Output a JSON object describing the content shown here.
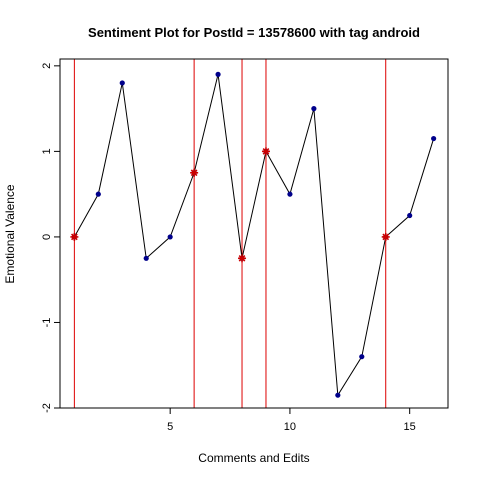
{
  "chart_data": {
    "type": "line",
    "title": "Sentiment Plot for PostId =  13578600  with tag  android",
    "xlabel": "Comments and Edits",
    "ylabel": "Emotional Valence",
    "xlim": [
      0.4,
      16.6
    ],
    "ylim": [
      -2.0,
      2.08
    ],
    "xticks": [
      5,
      10,
      15
    ],
    "yticks": [
      -2,
      -1,
      0,
      1,
      2
    ],
    "grid": false,
    "x": [
      1,
      2,
      3,
      4,
      5,
      6,
      7,
      8,
      9,
      10,
      11,
      12,
      13,
      14,
      15,
      16
    ],
    "y": [
      0,
      0.5,
      1.8,
      -0.25,
      0,
      0.75,
      1.9,
      -0.25,
      1.0,
      0.5,
      1.5,
      -1.85,
      -1.4,
      0,
      0.25,
      1.15
    ],
    "highlight_x": [
      1,
      6,
      8,
      9,
      14
    ],
    "colors": {
      "line": "#000000",
      "point": "#00008b",
      "highlight_point": "#cc0000",
      "vline": "#dd0000",
      "frame": "#000000"
    }
  }
}
